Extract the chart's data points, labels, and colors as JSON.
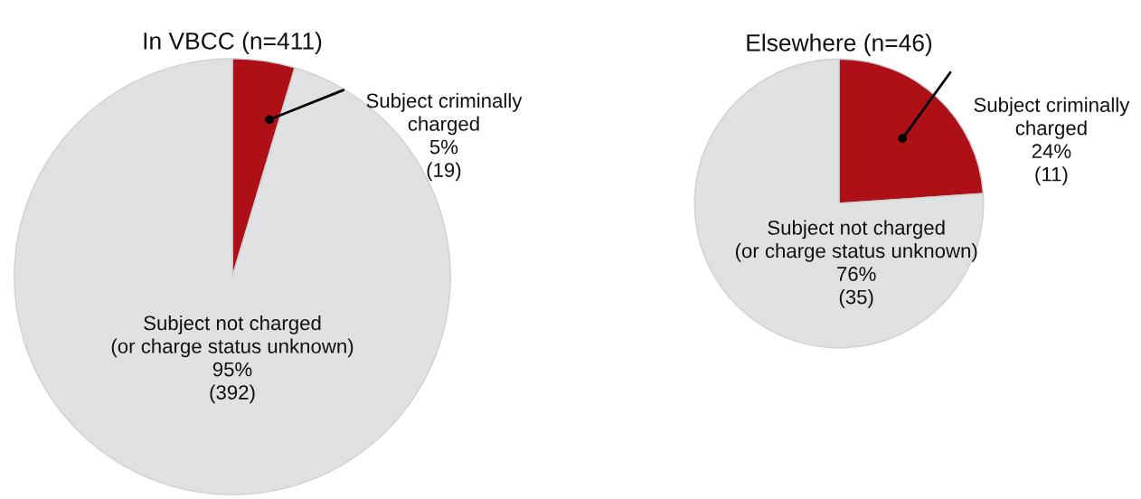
{
  "chart_data": [
    {
      "type": "pie",
      "title": "In VBCC (n=411)",
      "categories": [
        "Subject criminally\ncharged",
        "Subject not charged\n(or charge status unknown)"
      ],
      "values": [
        19,
        392
      ],
      "value_labels": [
        "5%\n(19)",
        "95%\n(392)"
      ],
      "colors": [
        "#ad1117",
        "#e0e1e3"
      ]
    },
    {
      "type": "pie",
      "title": "Elsewhere (n=46)",
      "categories": [
        "Subject criminally\ncharged",
        "Subject not charged\n(or charge status unknown)"
      ],
      "values": [
        11,
        35
      ],
      "value_labels": [
        "24%\n(11)",
        "76%\n(35)"
      ],
      "colors": [
        "#ad1117",
        "#e0e1e3"
      ]
    }
  ]
}
